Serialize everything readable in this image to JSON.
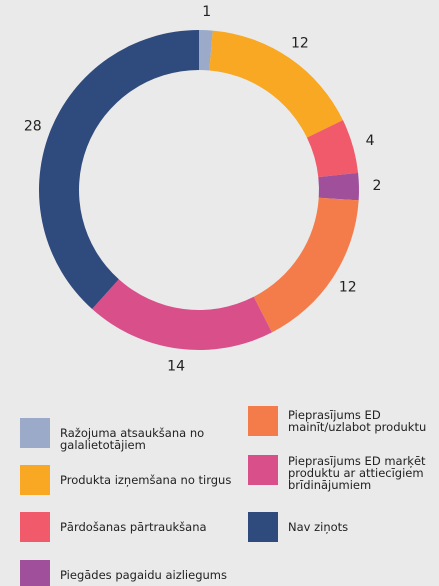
{
  "chart_data": {
    "type": "donut",
    "categories": [
      "Ražojuma atsaukšana no galalietotājiem",
      "Produkta izņemšana no tirgus",
      "Pārdošanas pārtraukšana",
      "Piegādes pagaidu aizliegums",
      "Pieprasījums ED mainīt/uzlabot produktu",
      "Pieprasījums ED marķēt produktu ar attiecīgiem brīdinājumiem",
      "Nav ziņots"
    ],
    "values": [
      1,
      12,
      4,
      2,
      12,
      14,
      28
    ],
    "colors": [
      "#9aaac8",
      "#f8a823",
      "#f05a6a",
      "#a0509a",
      "#f47c4a",
      "#d94f8a",
      "#2f4a7c"
    ]
  }
}
